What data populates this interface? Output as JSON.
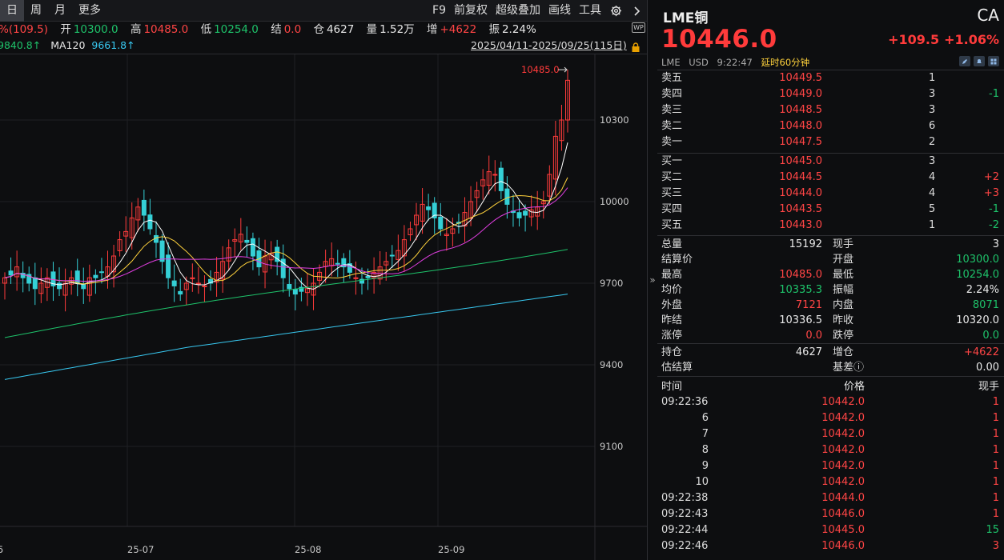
{
  "toolbar": {
    "periods": [
      "日",
      "周",
      "月",
      "更多"
    ],
    "active_period": "日",
    "tools": [
      "F9",
      "前复权",
      "超级叠加",
      "画线",
      "工具"
    ],
    "settings_icon": "gear-icon",
    "more_icon": "chevron-right-icon"
  },
  "info": {
    "change_pct": "%(109.5)",
    "open_label": "开",
    "open": "10300.0",
    "high_label": "高",
    "high": "10485.0",
    "low_label": "低",
    "low": "10254.0",
    "settle_label": "结",
    "settle": "0.0",
    "oi_label": "仓",
    "oi": "4627",
    "vol_label": "量",
    "vol": "1.52万",
    "oi_chg_label": "增",
    "oi_chg": "+4622",
    "amp_label": "振",
    "amp": "2.24%"
  },
  "ma_line": {
    "ma60_value": "9840.8↑",
    "ma120_label": "MA120",
    "ma120_value": "9661.8↑",
    "date_range": "2025/04/11-2025/09/25(115日)"
  },
  "chart_data": {
    "type": "candlestick",
    "yaxis_ticks": [
      "10300",
      "10000",
      "9700",
      "9400",
      "9100"
    ],
    "xaxis_ticks": [
      "25-07",
      "25-08",
      "25-09"
    ],
    "last_tick_partial": "5",
    "high_annotation": "10485.0",
    "colors": {
      "up": "#ff3b3b",
      "down": "#35d0d6",
      "ma5": "#ffffff",
      "ma10": "#ffd23c",
      "ma20": "#e13ee1",
      "ma60": "#1ec26a",
      "ma120": "#38c8f0"
    }
  },
  "panel": {
    "name": "LME铜",
    "code": "CA",
    "price": "10446.0",
    "change": "+109.5",
    "change_pct": "+1.06%",
    "exchange": "LME",
    "currency": "USD",
    "time": "9:22:47",
    "delay": "延时60分钟",
    "asks": [
      {
        "label": "卖五",
        "price": "10449.5",
        "vol": "1",
        "chg": ""
      },
      {
        "label": "卖四",
        "price": "10449.0",
        "vol": "3",
        "chg": "-1"
      },
      {
        "label": "卖三",
        "price": "10448.5",
        "vol": "3",
        "chg": ""
      },
      {
        "label": "卖二",
        "price": "10448.0",
        "vol": "6",
        "chg": ""
      },
      {
        "label": "卖一",
        "price": "10447.5",
        "vol": "2",
        "chg": ""
      }
    ],
    "bids": [
      {
        "label": "买一",
        "price": "10445.0",
        "vol": "3",
        "chg": ""
      },
      {
        "label": "买二",
        "price": "10444.5",
        "vol": "4",
        "chg": "+2"
      },
      {
        "label": "买三",
        "price": "10444.0",
        "vol": "4",
        "chg": "+3"
      },
      {
        "label": "买四",
        "price": "10443.5",
        "vol": "5",
        "chg": "-1"
      },
      {
        "label": "买五",
        "price": "10443.0",
        "vol": "1",
        "chg": "-2"
      }
    ],
    "stats": [
      {
        "l1": "总量",
        "v1": "15192",
        "c1": "white",
        "l2": "现手",
        "v2": "3",
        "c2": "white"
      },
      {
        "l1": "结算价",
        "v1": "",
        "c1": "white",
        "l2": "开盘",
        "v2": "10300.0",
        "c2": "green"
      },
      {
        "l1": "最高",
        "v1": "10485.0",
        "c1": "red",
        "l2": "最低",
        "v2": "10254.0",
        "c2": "green"
      },
      {
        "l1": "均价",
        "v1": "10335.3",
        "c1": "green",
        "l2": "振幅",
        "v2": "2.24%",
        "c2": "white"
      },
      {
        "l1": "外盘",
        "v1": "7121",
        "c1": "red",
        "l2": "内盘",
        "v2": "8071",
        "c2": "green"
      },
      {
        "l1": "昨结",
        "v1": "10336.5",
        "c1": "white",
        "l2": "昨收",
        "v2": "10320.0",
        "c2": "white"
      },
      {
        "l1": "涨停",
        "v1": "0.0",
        "c1": "red",
        "l2": "跌停",
        "v2": "0.0",
        "c2": "green"
      }
    ],
    "stats2": [
      {
        "l1": "持仓",
        "v1": "4627",
        "c1": "white",
        "l2": "增仓",
        "v2": "+4622",
        "c2": "red"
      },
      {
        "l1": "估结算",
        "v1": "",
        "c1": "white",
        "l2": "基差ⓘ",
        "v2": "0.00",
        "c2": "white"
      }
    ],
    "ticks_header": {
      "time": "时间",
      "price": "价格",
      "vol": "现手"
    },
    "ticks": [
      {
        "time": "09:22:36",
        "sub": "",
        "price": "10442.0",
        "vol": "1",
        "vc": "red"
      },
      {
        "time": "",
        "sub": "6",
        "price": "10442.0",
        "vol": "1",
        "vc": "red"
      },
      {
        "time": "",
        "sub": "7",
        "price": "10442.0",
        "vol": "1",
        "vc": "red"
      },
      {
        "time": "",
        "sub": "8",
        "price": "10442.0",
        "vol": "1",
        "vc": "red"
      },
      {
        "time": "",
        "sub": "9",
        "price": "10442.0",
        "vol": "1",
        "vc": "red"
      },
      {
        "time": "",
        "sub": "10",
        "price": "10442.0",
        "vol": "1",
        "vc": "red"
      },
      {
        "time": "09:22:38",
        "sub": "",
        "price": "10444.0",
        "vol": "1",
        "vc": "red"
      },
      {
        "time": "09:22:43",
        "sub": "",
        "price": "10446.0",
        "vol": "1",
        "vc": "red"
      },
      {
        "time": "09:22:44",
        "sub": "",
        "price": "10445.0",
        "vol": "15",
        "vc": "green"
      },
      {
        "time": "09:22:46",
        "sub": "",
        "price": "10446.0",
        "vol": "3",
        "vc": "red"
      }
    ]
  }
}
